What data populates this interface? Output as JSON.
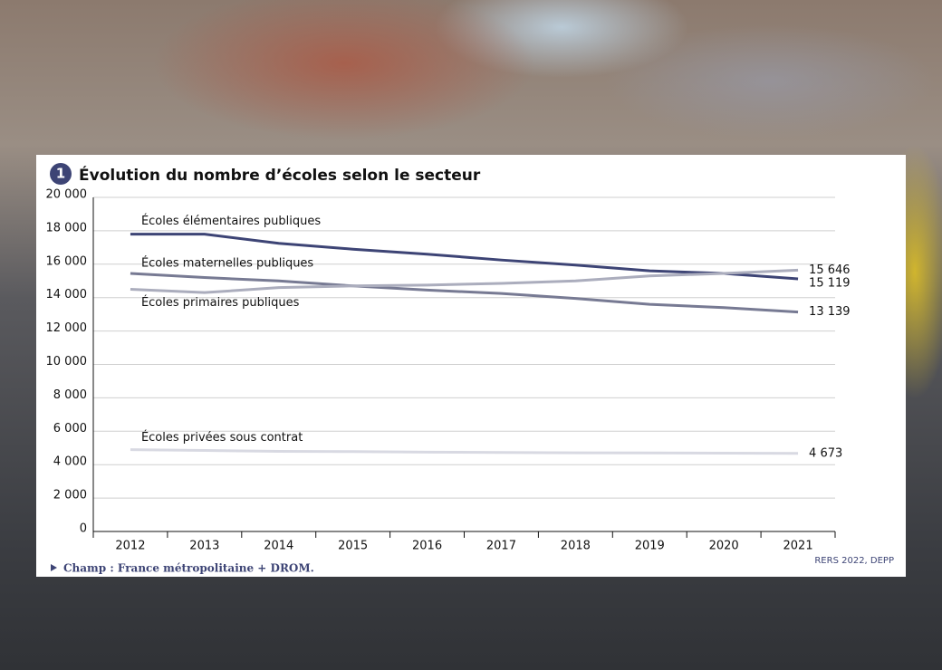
{
  "chart_data": {
    "type": "line",
    "number": "1",
    "title": "Évolution du nombre d’écoles selon le secteur",
    "categories": [
      "2012",
      "2013",
      "2014",
      "2015",
      "2016",
      "2017",
      "2018",
      "2019",
      "2020",
      "2021"
    ],
    "series": [
      {
        "name": "Écoles élémentaires publiques",
        "color": "#3d4475",
        "values": [
          17800,
          17800,
          17250,
          16900,
          16600,
          16250,
          15950,
          15600,
          15450,
          15119
        ],
        "value_labels": [
          null,
          null,
          null,
          null,
          null,
          null,
          null,
          null,
          null,
          "15 119"
        ]
      },
      {
        "name": "Écoles maternelles publiques",
        "color": "#777a93",
        "values": [
          15450,
          15200,
          15000,
          14700,
          14450,
          14250,
          13950,
          13600,
          13400,
          13139
        ],
        "value_labels": [
          null,
          null,
          null,
          null,
          null,
          null,
          null,
          null,
          null,
          "13 139"
        ]
      },
      {
        "name": "Écoles primaires publiques",
        "color": "#abadbd",
        "values": [
          14500,
          14300,
          14600,
          14700,
          14750,
          14850,
          15000,
          15300,
          15450,
          15646
        ],
        "value_labels": [
          null,
          null,
          null,
          null,
          null,
          null,
          null,
          null,
          null,
          "15 646"
        ]
      },
      {
        "name": "Écoles privées sous contrat",
        "color": "#d8d9e2",
        "values": [
          4900,
          4850,
          4800,
          4780,
          4750,
          4730,
          4710,
          4700,
          4690,
          4673
        ],
        "value_labels": [
          null,
          null,
          null,
          null,
          null,
          null,
          null,
          null,
          null,
          "4 673"
        ]
      }
    ],
    "ylim": [
      0,
      20000
    ],
    "yticks": [
      0,
      {
        "value": 2000,
        "label": "2 000"
      },
      {
        "value": 4000,
        "label": "4 000"
      },
      {
        "value": 6000,
        "label": "6 000"
      },
      {
        "value": 8000,
        "label": "8 000"
      },
      {
        "value": 10000,
        "label": "10 000"
      },
      {
        "value": 12000,
        "label": "12 000"
      },
      {
        "value": 14000,
        "label": "14 000"
      },
      {
        "value": 16000,
        "label": "16 000"
      },
      {
        "value": 18000,
        "label": "18 000"
      },
      {
        "value": 20000,
        "label": "20 000"
      }
    ],
    "grid": true,
    "note": "Champ : France métropolitaine + DROM.",
    "source": "RERS 2022, DEPP"
  }
}
